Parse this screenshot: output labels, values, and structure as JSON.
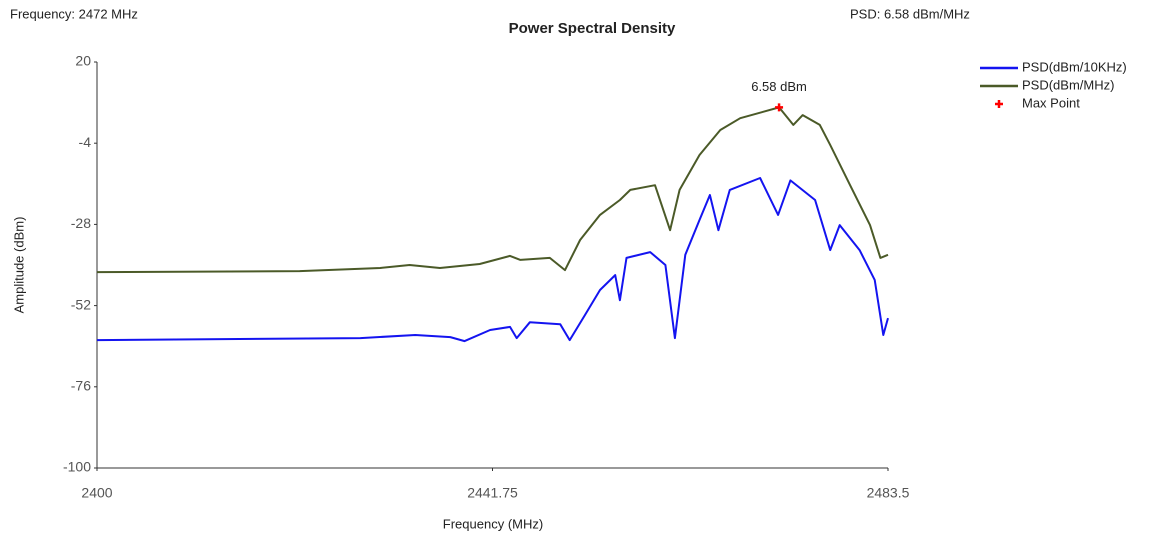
{
  "chart_data": {
    "type": "line",
    "title": "Power Spectral Density",
    "frequency_readout": "Frequency: 2472 MHz",
    "psd_readout": "PSD: 6.58 dBm/MHz",
    "xlabel": "Frequency (MHz)",
    "ylabel": "Amplitude (dBm)",
    "xlim": [
      2400,
      2483.5
    ],
    "xticks": [
      2400,
      2441.75,
      2483.5
    ],
    "ylim": [
      -100,
      20
    ],
    "yticks": [
      -100,
      -76,
      -52,
      -28,
      -4,
      20
    ],
    "grid": false,
    "legend": "upper right",
    "series": [
      {
        "name": "PSD(dBm/10KHz)",
        "color": "#1414f0",
        "x": [
          2400,
          2427.8,
          2433.6,
          2437.3,
          2438.8,
          2441.5,
          2443.6,
          2444.3,
          2445.7,
          2448.9,
          2449.9,
          2451.5,
          2453.1,
          2454.7,
          2455.2,
          2455.9,
          2458.4,
          2460,
          2461,
          2462.1,
          2463.6,
          2464.7,
          2465.6,
          2466.8,
          2470,
          2471.9,
          2473.2,
          2475.8,
          2477.4,
          2478.4,
          2480.5,
          2482.1,
          2483,
          2483.5
        ],
        "values": [
          -62.2,
          -61.6,
          -60.7,
          -61.3,
          -62.5,
          -59.2,
          -58.3,
          -61.6,
          -56.9,
          -57.5,
          -62.2,
          -54.8,
          -47.4,
          -43,
          -50.4,
          -37.9,
          -36.2,
          -40,
          -61.6,
          -37,
          -26.7,
          -19.3,
          -29.7,
          -17.8,
          -14.3,
          -25.2,
          -15,
          -20.8,
          -35.6,
          -28.2,
          -35.6,
          -44.4,
          -60.7,
          -55.7
        ]
      },
      {
        "name": "PSD(dBm/MHz)",
        "color": "#4b5a28",
        "x": [
          2400,
          2421.4,
          2429.9,
          2433,
          2436.2,
          2440.4,
          2443.6,
          2444.7,
          2447.8,
          2449.4,
          2451,
          2453.1,
          2455.2,
          2456.3,
          2458.9,
          2460.5,
          2461.5,
          2463.6,
          2465.8,
          2467.9,
          2472,
          2473.5,
          2474.5,
          2476.3,
          2477.4,
          2479.5,
          2481.6,
          2482.7,
          2483.5
        ],
        "values": [
          -42.1,
          -41.8,
          -40.9,
          -40,
          -40.9,
          -39.7,
          -37.3,
          -38.5,
          -37.9,
          -41.5,
          -32.6,
          -25.2,
          -20.8,
          -17.8,
          -16.4,
          -29.7,
          -17.8,
          -7.5,
          -0.1,
          3.4,
          6.58,
          1.4,
          4.3,
          1.4,
          -4.5,
          -16.4,
          -28.2,
          -37.9,
          -37
        ]
      },
      {
        "name": "Max Point",
        "color": "#ff0000",
        "x": [
          2472
        ],
        "values": [
          6.58
        ],
        "value_labels": [
          "6.58 dBm"
        ]
      }
    ]
  }
}
